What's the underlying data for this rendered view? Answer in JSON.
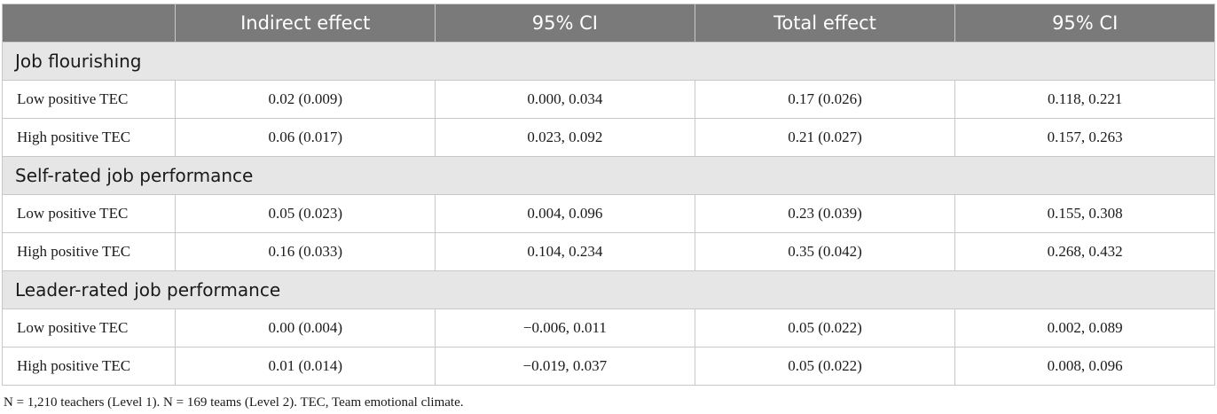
{
  "header": [
    "",
    "Indirect effect",
    "95% CI",
    "Total effect",
    "95% CI"
  ],
  "sections": [
    {
      "title": "Job flourishing",
      "rows": [
        [
          "Low positive TEC",
          "0.02 (0.009)",
          "0.000, 0.034",
          "0.17 (0.026)",
          "0.118, 0.221"
        ],
        [
          "High positive TEC",
          "0.06 (0.017)",
          "0.023, 0.092",
          "0.21 (0.027)",
          "0.157, 0.263"
        ]
      ]
    },
    {
      "title": "Self-rated job performance",
      "rows": [
        [
          "Low positive TEC",
          "0.05 (0.023)",
          "0.004, 0.096",
          "0.23 (0.039)",
          "0.155, 0.308"
        ],
        [
          "High positive TEC",
          "0.16 (0.033)",
          "0.104, 0.234",
          "0.35 (0.042)",
          "0.268, 0.432"
        ]
      ]
    },
    {
      "title": "Leader-rated job performance",
      "rows": [
        [
          "Low positive TEC",
          "0.00 (0.004)",
          "−0.006, 0.011",
          "0.05 (0.022)",
          "0.002, 0.089"
        ],
        [
          "High positive TEC",
          "0.01 (0.014)",
          "−0.019, 0.037",
          "0.05 (0.022)",
          "0.008, 0.096"
        ]
      ]
    }
  ],
  "note": "N = 1,210 teachers (Level 1). N = 169 teams (Level 2). TEC, Team emotional climate."
}
